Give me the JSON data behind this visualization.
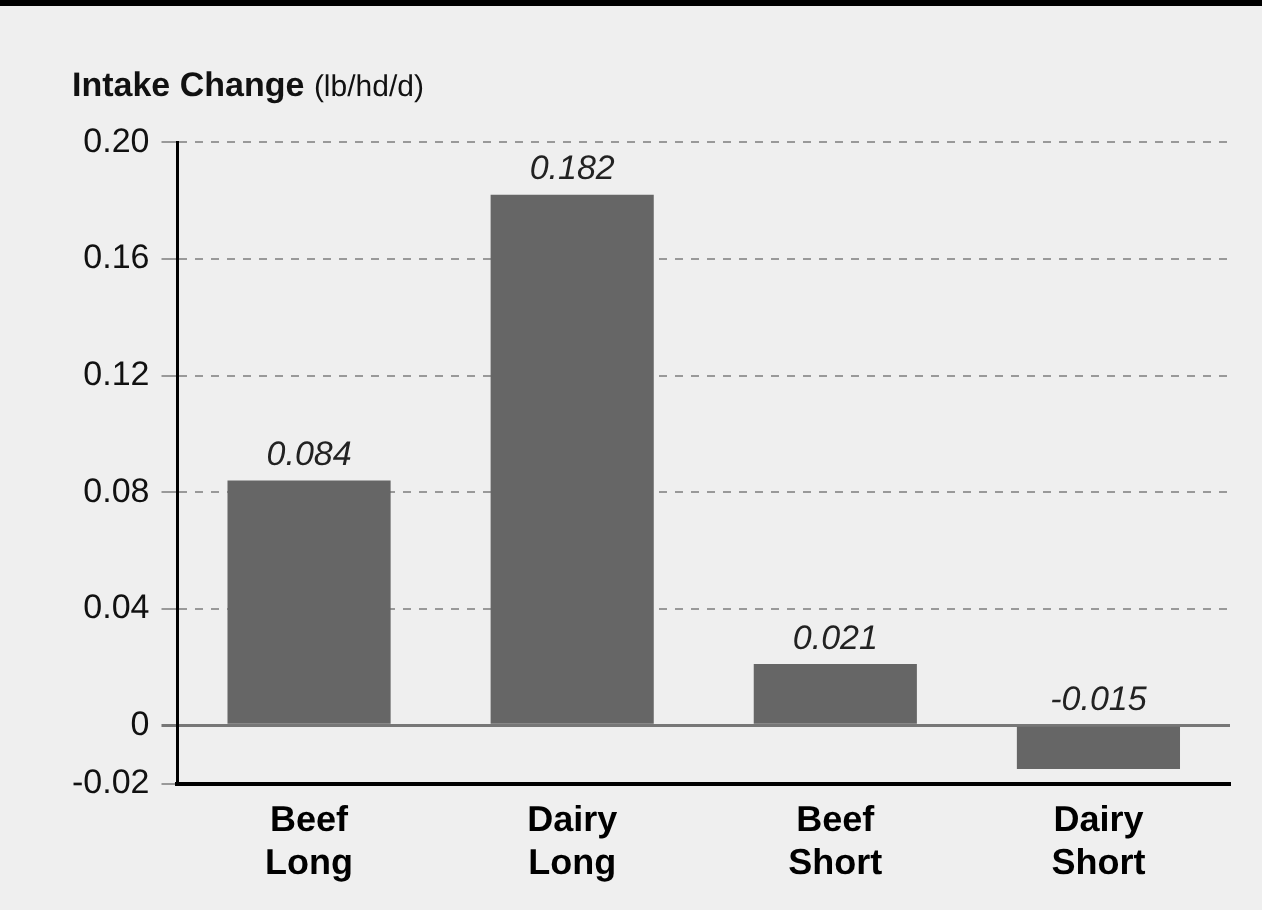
{
  "chart_data": {
    "type": "bar",
    "title": "Intake Change",
    "ylabel": "(lb/hd/d)",
    "categories": [
      "Beef Long",
      "Dairy Long",
      "Beef Short",
      "Dairy Short"
    ],
    "values": [
      0.084,
      0.182,
      0.021,
      -0.015
    ],
    "color": "#666666",
    "ylim": [
      -0.02,
      0.2
    ],
    "yticks": [
      -0.02,
      0,
      0.04,
      0.08,
      0.12,
      0.16,
      {
        "value": 0.2,
        "label": "0.20"
      }
    ],
    "grid": "y",
    "data_labels": true,
    "legend": false
  }
}
